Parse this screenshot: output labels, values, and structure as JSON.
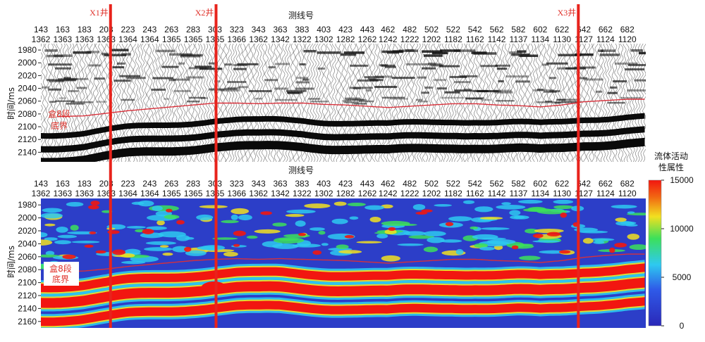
{
  "chart_data": [
    {
      "type": "heatmap",
      "panel": "seismic-section",
      "title": "测线号",
      "ylabel": "时间/ms",
      "trace_numbers": [
        "143",
        "163",
        "183",
        "203",
        "223",
        "243",
        "263",
        "283",
        "303",
        "323",
        "343",
        "363",
        "383",
        "403",
        "423",
        "443",
        "462",
        "482",
        "502",
        "522",
        "542",
        "562",
        "582",
        "602",
        "622",
        "642",
        "662",
        "682"
      ],
      "line_numbers": [
        "1362",
        "1363",
        "1363",
        "1363",
        "1364",
        "1364",
        "1365",
        "1365",
        "1365",
        "1366",
        "1362",
        "1342",
        "1322",
        "1302",
        "1282",
        "1262",
        "1242",
        "1222",
        "1202",
        "1182",
        "1162",
        "1142",
        "1137",
        "1134",
        "1130",
        "1127",
        "1124",
        "1120"
      ],
      "y_ticks": [
        1980,
        2000,
        2020,
        2040,
        2060,
        2080,
        2100,
        2120,
        2140
      ],
      "ylim": [
        2155,
        1970
      ],
      "horizon_label_line1": "盒8段",
      "horizon_label_line2": "底界",
      "horizon_time_ms": [
        2085,
        2084,
        2083,
        2079,
        2075,
        2072,
        2069,
        2066,
        2063,
        2063,
        2064,
        2063,
        2063,
        2065,
        2066,
        2068,
        2070,
        2068,
        2066,
        2064,
        2064,
        2066,
        2067,
        2069,
        2066,
        2061,
        2059,
        2057
      ]
    },
    {
      "type": "heatmap",
      "panel": "fluid-activity-attribute",
      "title": "测线号",
      "ylabel": "时间/ms",
      "trace_numbers": [
        "143",
        "163",
        "183",
        "203",
        "223",
        "243",
        "263",
        "283",
        "303",
        "323",
        "343",
        "363",
        "383",
        "403",
        "423",
        "443",
        "462",
        "482",
        "502",
        "522",
        "542",
        "562",
        "582",
        "602",
        "622",
        "642",
        "662",
        "682"
      ],
      "line_numbers": [
        "1362",
        "1363",
        "1363",
        "1363",
        "1364",
        "1364",
        "1365",
        "1365",
        "1365",
        "1366",
        "1362",
        "1342",
        "1322",
        "1302",
        "1282",
        "1262",
        "1242",
        "1222",
        "1202",
        "1182",
        "1162",
        "1142",
        "1137",
        "1134",
        "1130",
        "1127",
        "1124",
        "1120"
      ],
      "y_ticks": [
        1980,
        2000,
        2020,
        2040,
        2060,
        2080,
        2100,
        2120,
        2140,
        2160
      ],
      "ylim": [
        2170,
        1970
      ],
      "horizon_label_line1": "盒8段",
      "horizon_label_line2": "底界",
      "horizon_time_ms": [
        2084,
        2083,
        2082,
        2079,
        2075,
        2072,
        2069,
        2066,
        2064,
        2063,
        2064,
        2063,
        2064,
        2065,
        2066,
        2068,
        2070,
        2068,
        2066,
        2064,
        2064,
        2066,
        2067,
        2069,
        2066,
        2061,
        2058,
        2056
      ],
      "colorbar": {
        "title_line1": "流体活动",
        "title_line2": "性属性",
        "ticks": [
          0,
          5000,
          10000,
          15000
        ],
        "tick_labels": [
          "0",
          "5000",
          "10000",
          "15000"
        ],
        "range": [
          0,
          15000
        ]
      }
    }
  ],
  "wells": [
    {
      "name": "X1井",
      "trace": 207
    },
    {
      "name": "X2井",
      "trace": 304
    },
    {
      "name": "X3井",
      "trace": 637
    }
  ],
  "colors": {
    "well_line": "#e8231c",
    "horizon_line": "#d8303a",
    "colormap": [
      "#2a28b8",
      "#2f5ae8",
      "#2ec9f0",
      "#3ce05a",
      "#f2e020",
      "#f26a12",
      "#f21610"
    ]
  }
}
